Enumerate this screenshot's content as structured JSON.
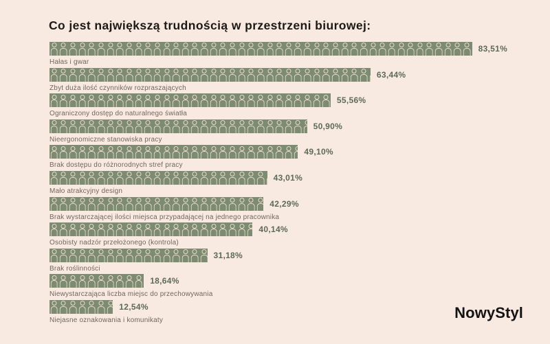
{
  "logo_text": "NowyStyl",
  "colors": {
    "bg": "#f8e9e1",
    "bar": "#7c8b72",
    "icon": "#e9dcc8",
    "title": "#1d1a16",
    "pct": "#5d6b55",
    "label": "#70675f",
    "logo": "#141414"
  },
  "chart_data": {
    "type": "bar",
    "orientation": "horizontal",
    "style": "pictogram-person-icons",
    "title": "Co jest największą trudnością w przestrzeni biurowej:",
    "unit": "%",
    "xlim": [
      0,
      100
    ],
    "grid": false,
    "legend": false,
    "categories": [
      "Hałas i gwar",
      "Zbyt duża ilość czynników rozpraszających",
      "Ograniczony dostęp do naturalnego światła",
      "Nieergonomiczne stanowiska pracy",
      "Brak dostępu do różnorodnych stref pracy",
      "Mało atrakcyjny design",
      "Brak wystarczającej ilości miejsca przypadającej na jednego pracownika",
      "Osobisty nadzór przełożonego (kontrola)",
      "Brak roślinności",
      "Niewystarczająca liczba miejsc do przechowywania",
      "Niejasne oznakowania i komunikaty"
    ],
    "values": [
      83.51,
      63.44,
      55.56,
      50.9,
      49.1,
      43.01,
      42.29,
      40.14,
      31.18,
      18.64,
      12.54
    ],
    "value_labels": [
      "83,51%",
      "63,44%",
      "55,56%",
      "50,90%",
      "49,10%",
      "43,01%",
      "42,29%",
      "40,14%",
      "31,18%",
      "18,64%",
      "12,54%"
    ]
  }
}
